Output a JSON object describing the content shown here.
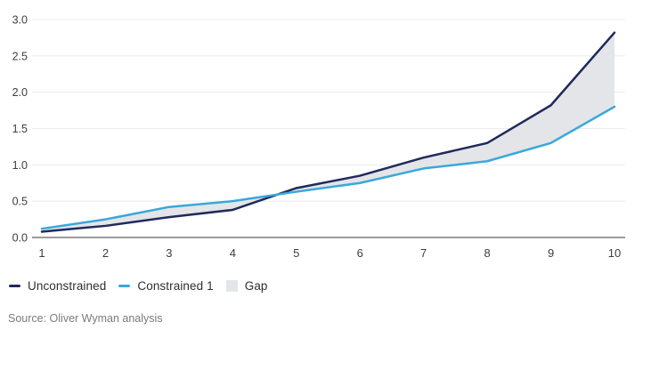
{
  "chart_data": {
    "type": "line",
    "x": [
      1,
      2,
      3,
      4,
      5,
      6,
      7,
      8,
      9,
      10
    ],
    "x_tick_labels": [
      "1",
      "2",
      "3",
      "4",
      "5",
      "6",
      "7",
      "8",
      "9",
      "10"
    ],
    "series": [
      {
        "name": "Unconstrained",
        "color": "#202a5c",
        "values": [
          0.08,
          0.16,
          0.28,
          0.38,
          0.68,
          0.85,
          1.1,
          1.3,
          1.82,
          2.82
        ]
      },
      {
        "name": "Constrained 1",
        "color": "#39a8da",
        "values": [
          0.12,
          0.25,
          0.42,
          0.5,
          0.63,
          0.75,
          0.95,
          1.05,
          1.3,
          1.8
        ]
      }
    ],
    "gap_area": {
      "name": "Gap",
      "color": "#e3e5e8",
      "between": [
        "Unconstrained",
        "Constrained 1"
      ]
    },
    "title": "",
    "xlabel": "",
    "ylabel": "",
    "ylim": [
      0,
      3.0
    ],
    "y_tick_step": 0.5,
    "y_tick_labels": [
      "0.0",
      "0.5",
      "1.0",
      "1.5",
      "2.0",
      "2.5",
      "3.0"
    ],
    "grid": "horizontal-only",
    "legend_position": "bottom-left"
  },
  "legend": {
    "items": [
      {
        "label": "Unconstrained",
        "swatch": "line",
        "color": "#202a5c"
      },
      {
        "label": "Constrained 1",
        "swatch": "line",
        "color": "#39a8da"
      },
      {
        "label": "Gap",
        "swatch": "square",
        "color": "#e3e5e8"
      }
    ]
  },
  "source": {
    "text": "Source: Oliver Wyman analysis"
  },
  "style": {
    "axis_color": "#7a7a7a",
    "grid_color": "#ebebeb",
    "tick_label_color": "#3d3d3d",
    "line_width": 2.5
  }
}
